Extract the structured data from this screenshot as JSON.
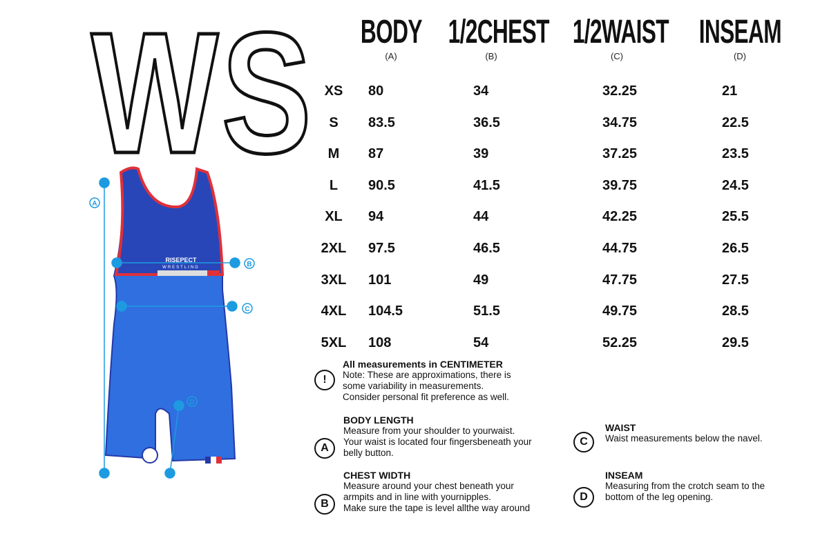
{
  "title": "WS",
  "brand_logo": "RISEPECT WRESTLING",
  "diagram_labels": [
    "A",
    "B",
    "C",
    "D"
  ],
  "colors": {
    "accent": "#1e9be0",
    "suit_blue": "#2f6fe0",
    "suit_dark": "#2438a8",
    "trim_red": "#e0303a"
  },
  "table": {
    "headers": [
      {
        "label": "BODY",
        "sub": "(A)"
      },
      {
        "label": "1/2CHEST",
        "sub": "(B)"
      },
      {
        "label": "1/2WAIST",
        "sub": "(C)"
      },
      {
        "label": "INSEAM",
        "sub": "(D)"
      }
    ],
    "rows": [
      [
        "XS",
        "80",
        "34",
        "32.25",
        "21"
      ],
      [
        "S",
        "83.5",
        "36.5",
        "34.75",
        "22.5"
      ],
      [
        "M",
        "87",
        "39",
        "37.25",
        "23.5"
      ],
      [
        "L",
        "90.5",
        "41.5",
        "39.75",
        "24.5"
      ],
      [
        "XL",
        "94",
        "44",
        "42.25",
        "25.5"
      ],
      [
        "2XL",
        "97.5",
        "46.5",
        "44.75",
        "26.5"
      ],
      [
        "3XL",
        "101",
        "49",
        "47.75",
        "27.5"
      ],
      [
        "4XL",
        "104.5",
        "51.5",
        "49.75",
        "28.5"
      ],
      [
        "5XL",
        "108",
        "54",
        "52.25",
        "29.5"
      ]
    ]
  },
  "notes": [
    {
      "icon": "!",
      "title": "All measurements in CENTIMETER",
      "lines": [
        "Note: These are approximations, there is",
        "some variability in measurements.",
        "Consider personal fit preference as well."
      ]
    },
    {
      "icon": "A",
      "title": "BODY LENGTH",
      "lines": [
        "Measure from your shoulder to yourwaist.",
        "Your waist is located four fingersbeneath your",
        "belly button."
      ]
    },
    {
      "icon": "B",
      "title": "CHEST WIDTH",
      "lines": [
        "Measure around your chest beneath your",
        "armpits and in line with yournipples.",
        "Make sure the tape is level allthe way around"
      ]
    },
    {
      "icon": "C",
      "title": "WAIST",
      "lines": [
        "Waist measurements below the navel."
      ]
    },
    {
      "icon": "D",
      "title": "INSEAM",
      "lines": [
        "Measuring from the crotch seam to the",
        "bottom of the leg opening."
      ]
    }
  ]
}
